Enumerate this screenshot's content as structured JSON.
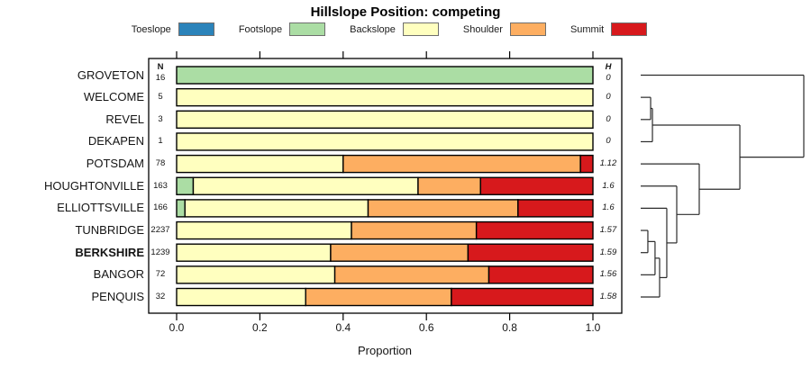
{
  "title": "Hillslope Position: competing",
  "legend": [
    {
      "label": "Toeslope",
      "color": "#2b83ba"
    },
    {
      "label": "Footslope",
      "color": "#abdda4"
    },
    {
      "label": "Backslope",
      "color": "#ffffbf"
    },
    {
      "label": "Shoulder",
      "color": "#fdae61"
    },
    {
      "label": "Summit",
      "color": "#d7191c"
    }
  ],
  "columns": {
    "n_header": "N",
    "h_header": "H"
  },
  "x_axis": {
    "title": "Proportion",
    "ticks": [
      "0.0",
      "0.2",
      "0.4",
      "0.6",
      "0.8",
      "1.0"
    ]
  },
  "chart_data": {
    "type": "bar",
    "stacked": true,
    "orientation": "horizontal",
    "title": "Hillslope Position: competing",
    "xlabel": "Proportion",
    "xlim": [
      0,
      1
    ],
    "categories": [
      "Toeslope",
      "Footslope",
      "Backslope",
      "Shoulder",
      "Summit"
    ],
    "colors": {
      "Toeslope": "#2b83ba",
      "Footslope": "#abdda4",
      "Backslope": "#ffffbf",
      "Shoulder": "#fdae61",
      "Summit": "#d7191c"
    },
    "rows": [
      {
        "label": "GROVETON",
        "n": "16",
        "h": "0",
        "emphasis": false,
        "segments": [
          {
            "cat": "Footslope",
            "value": 1.0
          }
        ]
      },
      {
        "label": "WELCOME",
        "n": "5",
        "h": "0",
        "emphasis": false,
        "segments": [
          {
            "cat": "Backslope",
            "value": 1.0
          }
        ]
      },
      {
        "label": "REVEL",
        "n": "3",
        "h": "0",
        "emphasis": false,
        "segments": [
          {
            "cat": "Backslope",
            "value": 1.0
          }
        ]
      },
      {
        "label": "DEKAPEN",
        "n": "1",
        "h": "0",
        "emphasis": false,
        "segments": [
          {
            "cat": "Backslope",
            "value": 1.0
          }
        ]
      },
      {
        "label": "POTSDAM",
        "n": "78",
        "h": "1.12",
        "emphasis": false,
        "segments": [
          {
            "cat": "Backslope",
            "value": 0.4
          },
          {
            "cat": "Shoulder",
            "value": 0.57
          },
          {
            "cat": "Summit",
            "value": 0.03
          }
        ]
      },
      {
        "label": "HOUGHTONVILLE",
        "n": "163",
        "h": "1.6",
        "emphasis": false,
        "segments": [
          {
            "cat": "Footslope",
            "value": 0.04
          },
          {
            "cat": "Backslope",
            "value": 0.54
          },
          {
            "cat": "Shoulder",
            "value": 0.15
          },
          {
            "cat": "Summit",
            "value": 0.27
          }
        ]
      },
      {
        "label": "ELLIOTTSVILLE",
        "n": "166",
        "h": "1.6",
        "emphasis": false,
        "segments": [
          {
            "cat": "Footslope",
            "value": 0.02
          },
          {
            "cat": "Backslope",
            "value": 0.44
          },
          {
            "cat": "Shoulder",
            "value": 0.36
          },
          {
            "cat": "Summit",
            "value": 0.18
          }
        ]
      },
      {
        "label": "TUNBRIDGE",
        "n": "2237",
        "h": "1.57",
        "emphasis": false,
        "segments": [
          {
            "cat": "Backslope",
            "value": 0.42
          },
          {
            "cat": "Shoulder",
            "value": 0.3
          },
          {
            "cat": "Summit",
            "value": 0.28
          }
        ]
      },
      {
        "label": "BERKSHIRE",
        "n": "1239",
        "h": "1.59",
        "emphasis": true,
        "segments": [
          {
            "cat": "Backslope",
            "value": 0.37
          },
          {
            "cat": "Shoulder",
            "value": 0.33
          },
          {
            "cat": "Summit",
            "value": 0.3
          }
        ]
      },
      {
        "label": "BANGOR",
        "n": "72",
        "h": "1.56",
        "emphasis": false,
        "segments": [
          {
            "cat": "Backslope",
            "value": 0.38
          },
          {
            "cat": "Shoulder",
            "value": 0.37
          },
          {
            "cat": "Summit",
            "value": 0.25
          }
        ]
      },
      {
        "label": "PENQUIS",
        "n": "32",
        "h": "1.58",
        "emphasis": false,
        "segments": [
          {
            "cat": "Backslope",
            "value": 0.31
          },
          {
            "cat": "Shoulder",
            "value": 0.35
          },
          {
            "cat": "Summit",
            "value": 0.34
          }
        ]
      }
    ],
    "dendrogram": {
      "merges": [
        {
          "a": "TUNBRIDGE",
          "b": "BERKSHIRE",
          "height": 0.044
        },
        {
          "a": "m0",
          "b": "BANGOR",
          "height": 0.088
        },
        {
          "a": "m1",
          "b": "PENQUIS",
          "height": 0.116
        },
        {
          "a": "ELLIOTTSVILLE",
          "b": "m2",
          "height": 0.16
        },
        {
          "a": "HOUGHTONVILLE",
          "b": "m3",
          "height": 0.221
        },
        {
          "a": "POTSDAM",
          "b": "m4",
          "height": 0.359
        },
        {
          "a": "WELCOME",
          "b": "REVEL",
          "height": 0.061
        },
        {
          "a": "m6",
          "b": "DEKAPEN",
          "height": 0.072
        },
        {
          "a": "m7",
          "b": "m5",
          "height": 0.608
        },
        {
          "a": "GROVETON",
          "b": "m8",
          "height": 1.0
        }
      ]
    }
  }
}
